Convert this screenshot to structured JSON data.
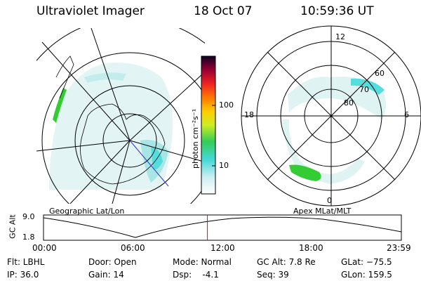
{
  "header": {
    "instrument": "Ultraviolet Imager",
    "date": "18 Oct 07",
    "time": "10:59:36 UT"
  },
  "colorbar": {
    "label": "photon cm⁻²s⁻¹",
    "ticks": [
      "100",
      "10"
    ]
  },
  "left_map": {
    "caption": "Geographic Lat/Lon"
  },
  "right_map": {
    "caption": "Apex MLat/MLT",
    "mlt_labels": {
      "top": "12",
      "right": "6",
      "bottom": "0",
      "left": "18"
    },
    "lat_labels": [
      "60",
      "70",
      "80"
    ]
  },
  "timeline": {
    "axis_label": "GC Alt",
    "y_ticks": [
      "9.0",
      "1.8"
    ],
    "x_ticks": [
      "00:00",
      "06:00",
      "12:00",
      "18:00",
      "23:59"
    ],
    "current_time_fraction": 0.458,
    "marker_color": "#ff0000"
  },
  "footer": {
    "filter": "Flt: LBHL",
    "ip": "IP: 36.0",
    "door": "Door: Open",
    "gain": "Gain: 14",
    "mode": "Mode: Normal",
    "dsp": "Dsp:    -4.1",
    "gc_alt": "GC Alt: 7.8 Re",
    "seq": "Seq: 39",
    "glat": "GLat: −75.5",
    "glon": "GLon: 159.5"
  }
}
